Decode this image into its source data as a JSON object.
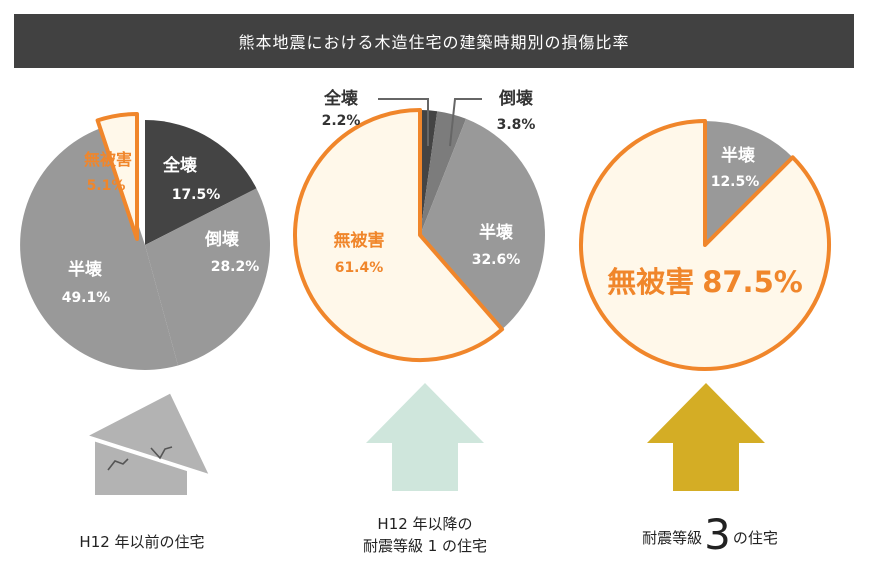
{
  "title": "熊本地震における木造住宅の建築時期別の損傷比率",
  "colors": {
    "collapsed": "#444444",
    "half_collapsed": "#999999",
    "pancake": "#7c7c7c",
    "no_damage_fill": "#fff8ea",
    "accent_orange": "#f0862b",
    "arrow_teal": "#cfe6dc",
    "arrow_gold": "#d4ad25",
    "house_gray": "#b3b3b3"
  },
  "chart_data": [
    {
      "type": "pie",
      "caption": "H12 年以前の住宅",
      "slices": [
        {
          "name": "全壊",
          "value": 17.5,
          "label": "17.5%"
        },
        {
          "name": "倒壊",
          "value": 28.2,
          "label": "28.2%"
        },
        {
          "name": "半壊",
          "value": 49.1,
          "label": "49.1%"
        },
        {
          "name": "無被害",
          "value": 5.1,
          "label": "5.1%"
        }
      ]
    },
    {
      "type": "pie",
      "caption_lines": [
        "H12 年以降の",
        "耐震等級 1 の住宅"
      ],
      "slices": [
        {
          "name": "全壊",
          "value": 2.2,
          "label": "2.2%"
        },
        {
          "name": "倒壊",
          "value": 3.8,
          "label": "3.8%"
        },
        {
          "name": "半壊",
          "value": 32.6,
          "label": "32.6%"
        },
        {
          "name": "無被害",
          "value": 61.4,
          "label": "61.4%"
        }
      ]
    },
    {
      "type": "pie",
      "caption_parts": [
        "耐震等級",
        "3",
        "の住宅"
      ],
      "slices": [
        {
          "name": "半壊",
          "value": 12.5,
          "label": "12.5%"
        },
        {
          "name": "無被害",
          "value": 87.5,
          "label": "87.5%"
        }
      ]
    }
  ]
}
